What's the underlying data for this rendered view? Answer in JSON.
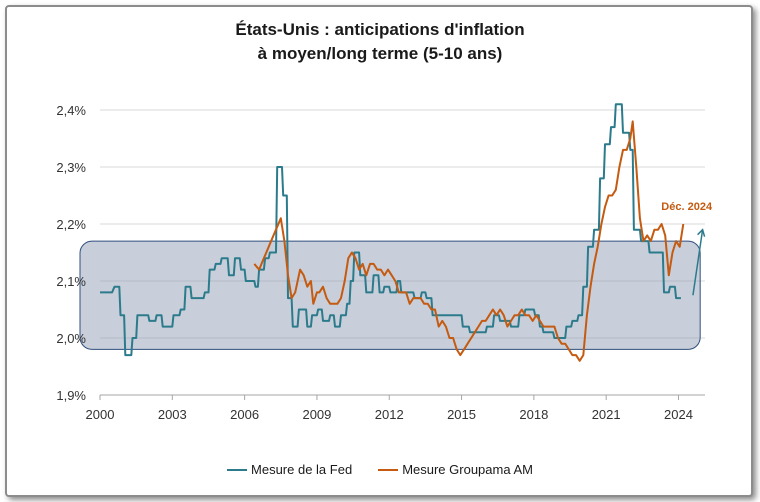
{
  "chart_data": {
    "type": "line",
    "title_line1": "États-Unis : anticipations d'inflation",
    "title_line2": "à moyen/long terme (5-10 ans)",
    "xlabel": "",
    "ylabel": "",
    "x_ticks": [
      "2000",
      "2003",
      "2006",
      "2009",
      "2012",
      "2015",
      "2018",
      "2021",
      "2024"
    ],
    "y_ticks": [
      "1,9%",
      "2,0%",
      "2,1%",
      "2,2%",
      "2,3%",
      "2,4%"
    ],
    "xlim": [
      2000,
      2025.1
    ],
    "ylim": [
      1.9,
      2.4
    ],
    "y_tick_values": [
      1.9,
      2.0,
      2.1,
      2.2,
      2.3,
      2.4
    ],
    "x_tick_values": [
      2000,
      2003,
      2006,
      2009,
      2012,
      2015,
      2018,
      2021,
      2024
    ],
    "grid": "horizontal",
    "legend_position": "bottom",
    "annotation": {
      "text": "Déc. 2024",
      "x": 2024.2,
      "y": 2.2,
      "color": "#c55a11"
    },
    "highlight_band": {
      "x_from": 2000,
      "x_to": 2024.9,
      "y_from": 1.98,
      "y_to": 2.17
    },
    "series": [
      {
        "name": "Mesure de la Fed",
        "color": "#2c7b8c",
        "step": true,
        "points": [
          [
            2000.0,
            2.08
          ],
          [
            2000.5,
            2.08
          ],
          [
            2000.6,
            2.09
          ],
          [
            2000.8,
            2.09
          ],
          [
            2000.85,
            2.04
          ],
          [
            2001.0,
            2.04
          ],
          [
            2001.05,
            1.97
          ],
          [
            2001.3,
            1.97
          ],
          [
            2001.35,
            2.0
          ],
          [
            2001.5,
            2.0
          ],
          [
            2001.55,
            2.04
          ],
          [
            2002.0,
            2.04
          ],
          [
            2002.05,
            2.03
          ],
          [
            2002.3,
            2.03
          ],
          [
            2002.35,
            2.04
          ],
          [
            2002.55,
            2.04
          ],
          [
            2002.6,
            2.02
          ],
          [
            2003.0,
            2.02
          ],
          [
            2003.05,
            2.04
          ],
          [
            2003.3,
            2.04
          ],
          [
            2003.35,
            2.05
          ],
          [
            2003.5,
            2.05
          ],
          [
            2003.55,
            2.09
          ],
          [
            2003.75,
            2.09
          ],
          [
            2003.8,
            2.07
          ],
          [
            2004.3,
            2.07
          ],
          [
            2004.35,
            2.08
          ],
          [
            2004.5,
            2.08
          ],
          [
            2004.55,
            2.12
          ],
          [
            2004.75,
            2.12
          ],
          [
            2004.8,
            2.13
          ],
          [
            2005.0,
            2.13
          ],
          [
            2005.05,
            2.14
          ],
          [
            2005.3,
            2.14
          ],
          [
            2005.35,
            2.11
          ],
          [
            2005.55,
            2.11
          ],
          [
            2005.6,
            2.14
          ],
          [
            2005.8,
            2.14
          ],
          [
            2005.85,
            2.12
          ],
          [
            2006.0,
            2.12
          ],
          [
            2006.05,
            2.1
          ],
          [
            2006.4,
            2.1
          ],
          [
            2006.45,
            2.09
          ],
          [
            2006.55,
            2.09
          ],
          [
            2006.6,
            2.12
          ],
          [
            2006.8,
            2.12
          ],
          [
            2006.85,
            2.14
          ],
          [
            2007.0,
            2.14
          ],
          [
            2007.05,
            2.15
          ],
          [
            2007.3,
            2.15
          ],
          [
            2007.35,
            2.3
          ],
          [
            2007.55,
            2.3
          ],
          [
            2007.6,
            2.25
          ],
          [
            2007.75,
            2.25
          ],
          [
            2007.8,
            2.07
          ],
          [
            2007.95,
            2.07
          ],
          [
            2008.0,
            2.02
          ],
          [
            2008.2,
            2.02
          ],
          [
            2008.25,
            2.05
          ],
          [
            2008.55,
            2.05
          ],
          [
            2008.6,
            2.02
          ],
          [
            2008.75,
            2.02
          ],
          [
            2008.8,
            2.04
          ],
          [
            2009.0,
            2.04
          ],
          [
            2009.05,
            2.05
          ],
          [
            2009.2,
            2.05
          ],
          [
            2009.25,
            2.03
          ],
          [
            2009.5,
            2.03
          ],
          [
            2009.55,
            2.04
          ],
          [
            2009.7,
            2.04
          ],
          [
            2009.75,
            2.02
          ],
          [
            2009.95,
            2.02
          ],
          [
            2010.0,
            2.04
          ],
          [
            2010.2,
            2.04
          ],
          [
            2010.25,
            2.06
          ],
          [
            2010.35,
            2.06
          ],
          [
            2010.4,
            2.1
          ],
          [
            2010.5,
            2.1
          ],
          [
            2010.55,
            2.15
          ],
          [
            2010.75,
            2.15
          ],
          [
            2010.8,
            2.11
          ],
          [
            2011.0,
            2.11
          ],
          [
            2011.05,
            2.08
          ],
          [
            2011.3,
            2.08
          ],
          [
            2011.35,
            2.11
          ],
          [
            2011.55,
            2.11
          ],
          [
            2011.6,
            2.08
          ],
          [
            2011.75,
            2.08
          ],
          [
            2011.8,
            2.09
          ],
          [
            2012.0,
            2.09
          ],
          [
            2012.05,
            2.08
          ],
          [
            2012.3,
            2.08
          ],
          [
            2012.35,
            2.1
          ],
          [
            2012.45,
            2.1
          ],
          [
            2012.5,
            2.08
          ],
          [
            2013.0,
            2.08
          ],
          [
            2013.05,
            2.07
          ],
          [
            2013.3,
            2.07
          ],
          [
            2013.35,
            2.08
          ],
          [
            2013.5,
            2.08
          ],
          [
            2013.55,
            2.07
          ],
          [
            2013.75,
            2.07
          ],
          [
            2013.8,
            2.04
          ],
          [
            2015.0,
            2.04
          ],
          [
            2015.05,
            2.02
          ],
          [
            2015.3,
            2.02
          ],
          [
            2015.35,
            2.01
          ],
          [
            2016.0,
            2.01
          ],
          [
            2016.05,
            2.02
          ],
          [
            2016.3,
            2.02
          ],
          [
            2016.35,
            2.04
          ],
          [
            2016.55,
            2.04
          ],
          [
            2016.6,
            2.03
          ],
          [
            2017.0,
            2.03
          ],
          [
            2017.05,
            2.02
          ],
          [
            2017.35,
            2.02
          ],
          [
            2017.4,
            2.04
          ],
          [
            2017.6,
            2.04
          ],
          [
            2017.65,
            2.05
          ],
          [
            2018.0,
            2.05
          ],
          [
            2018.05,
            2.04
          ],
          [
            2018.2,
            2.04
          ],
          [
            2018.25,
            2.02
          ],
          [
            2018.35,
            2.02
          ],
          [
            2018.4,
            2.01
          ],
          [
            2018.8,
            2.01
          ],
          [
            2018.85,
            2.0
          ],
          [
            2019.3,
            2.0
          ],
          [
            2019.35,
            2.02
          ],
          [
            2019.55,
            2.02
          ],
          [
            2019.6,
            2.03
          ],
          [
            2019.8,
            2.03
          ],
          [
            2019.85,
            2.04
          ],
          [
            2020.0,
            2.04
          ],
          [
            2020.05,
            2.09
          ],
          [
            2020.2,
            2.09
          ],
          [
            2020.25,
            2.16
          ],
          [
            2020.45,
            2.16
          ],
          [
            2020.5,
            2.19
          ],
          [
            2020.7,
            2.19
          ],
          [
            2020.75,
            2.28
          ],
          [
            2020.9,
            2.28
          ],
          [
            2020.95,
            2.34
          ],
          [
            2021.15,
            2.34
          ],
          [
            2021.2,
            2.37
          ],
          [
            2021.35,
            2.37
          ],
          [
            2021.4,
            2.41
          ],
          [
            2021.65,
            2.41
          ],
          [
            2021.7,
            2.36
          ],
          [
            2021.95,
            2.36
          ],
          [
            2022.0,
            2.33
          ],
          [
            2022.1,
            2.33
          ],
          [
            2022.15,
            2.19
          ],
          [
            2022.4,
            2.19
          ],
          [
            2022.45,
            2.17
          ],
          [
            2022.75,
            2.17
          ],
          [
            2022.8,
            2.15
          ],
          [
            2023.35,
            2.15
          ],
          [
            2023.4,
            2.08
          ],
          [
            2023.6,
            2.08
          ],
          [
            2023.65,
            2.09
          ],
          [
            2023.85,
            2.09
          ],
          [
            2023.9,
            2.07
          ],
          [
            2024.1,
            2.07
          ]
        ]
      },
      {
        "name": "Mesure Groupama AM",
        "color": "#c55a11",
        "step": false,
        "points": [
          [
            2006.4,
            2.13
          ],
          [
            2006.6,
            2.12
          ],
          [
            2006.8,
            2.14
          ],
          [
            2007.0,
            2.16
          ],
          [
            2007.2,
            2.18
          ],
          [
            2007.4,
            2.2
          ],
          [
            2007.5,
            2.21
          ],
          [
            2007.65,
            2.17
          ],
          [
            2007.8,
            2.11
          ],
          [
            2007.95,
            2.07
          ],
          [
            2008.1,
            2.08
          ],
          [
            2008.3,
            2.12
          ],
          [
            2008.45,
            2.11
          ],
          [
            2008.6,
            2.09
          ],
          [
            2008.75,
            2.1
          ],
          [
            2008.85,
            2.06
          ],
          [
            2009.0,
            2.08
          ],
          [
            2009.1,
            2.08
          ],
          [
            2009.25,
            2.09
          ],
          [
            2009.4,
            2.07
          ],
          [
            2009.55,
            2.06
          ],
          [
            2009.7,
            2.06
          ],
          [
            2009.85,
            2.06
          ],
          [
            2010.0,
            2.07
          ],
          [
            2010.15,
            2.1
          ],
          [
            2010.3,
            2.14
          ],
          [
            2010.45,
            2.15
          ],
          [
            2010.6,
            2.14
          ],
          [
            2010.75,
            2.12
          ],
          [
            2010.9,
            2.13
          ],
          [
            2011.05,
            2.11
          ],
          [
            2011.2,
            2.13
          ],
          [
            2011.35,
            2.13
          ],
          [
            2011.5,
            2.12
          ],
          [
            2011.65,
            2.12
          ],
          [
            2011.8,
            2.11
          ],
          [
            2011.95,
            2.12
          ],
          [
            2012.1,
            2.11
          ],
          [
            2012.25,
            2.1
          ],
          [
            2012.4,
            2.08
          ],
          [
            2012.55,
            2.08
          ],
          [
            2012.7,
            2.08
          ],
          [
            2012.85,
            2.06
          ],
          [
            2013.0,
            2.07
          ],
          [
            2013.15,
            2.07
          ],
          [
            2013.3,
            2.07
          ],
          [
            2013.45,
            2.06
          ],
          [
            2013.6,
            2.06
          ],
          [
            2013.75,
            2.05
          ],
          [
            2013.9,
            2.05
          ],
          [
            2014.05,
            2.02
          ],
          [
            2014.2,
            2.03
          ],
          [
            2014.35,
            2.02
          ],
          [
            2014.5,
            2.0
          ],
          [
            2014.65,
            2.0
          ],
          [
            2014.8,
            1.98
          ],
          [
            2014.95,
            1.97
          ],
          [
            2015.1,
            1.98
          ],
          [
            2015.25,
            1.99
          ],
          [
            2015.4,
            2.0
          ],
          [
            2015.55,
            2.01
          ],
          [
            2015.7,
            2.02
          ],
          [
            2015.85,
            2.03
          ],
          [
            2016.0,
            2.03
          ],
          [
            2016.15,
            2.04
          ],
          [
            2016.3,
            2.05
          ],
          [
            2016.45,
            2.04
          ],
          [
            2016.6,
            2.05
          ],
          [
            2016.75,
            2.04
          ],
          [
            2016.9,
            2.02
          ],
          [
            2017.05,
            2.03
          ],
          [
            2017.2,
            2.04
          ],
          [
            2017.35,
            2.04
          ],
          [
            2017.5,
            2.05
          ],
          [
            2017.65,
            2.04
          ],
          [
            2017.8,
            2.04
          ],
          [
            2017.95,
            2.03
          ],
          [
            2018.1,
            2.04
          ],
          [
            2018.25,
            2.03
          ],
          [
            2018.4,
            2.02
          ],
          [
            2018.55,
            2.02
          ],
          [
            2018.7,
            2.02
          ],
          [
            2018.85,
            2.02
          ],
          [
            2019.0,
            2.0
          ],
          [
            2019.15,
            1.99
          ],
          [
            2019.3,
            1.99
          ],
          [
            2019.45,
            1.98
          ],
          [
            2019.6,
            1.97
          ],
          [
            2019.75,
            1.97
          ],
          [
            2019.9,
            1.96
          ],
          [
            2020.05,
            1.97
          ],
          [
            2020.2,
            2.04
          ],
          [
            2020.35,
            2.09
          ],
          [
            2020.5,
            2.13
          ],
          [
            2020.65,
            2.16
          ],
          [
            2020.8,
            2.2
          ],
          [
            2020.95,
            2.23
          ],
          [
            2021.1,
            2.25
          ],
          [
            2021.25,
            2.25
          ],
          [
            2021.4,
            2.26
          ],
          [
            2021.55,
            2.3
          ],
          [
            2021.7,
            2.33
          ],
          [
            2021.85,
            2.33
          ],
          [
            2022.0,
            2.35
          ],
          [
            2022.1,
            2.38
          ],
          [
            2022.25,
            2.3
          ],
          [
            2022.4,
            2.21
          ],
          [
            2022.55,
            2.17
          ],
          [
            2022.7,
            2.18
          ],
          [
            2022.85,
            2.17
          ],
          [
            2023.0,
            2.19
          ],
          [
            2023.15,
            2.19
          ],
          [
            2023.3,
            2.2
          ],
          [
            2023.45,
            2.18
          ],
          [
            2023.6,
            2.11
          ],
          [
            2023.75,
            2.15
          ],
          [
            2023.9,
            2.17
          ],
          [
            2024.05,
            2.16
          ],
          [
            2024.2,
            2.2
          ]
        ]
      }
    ]
  }
}
